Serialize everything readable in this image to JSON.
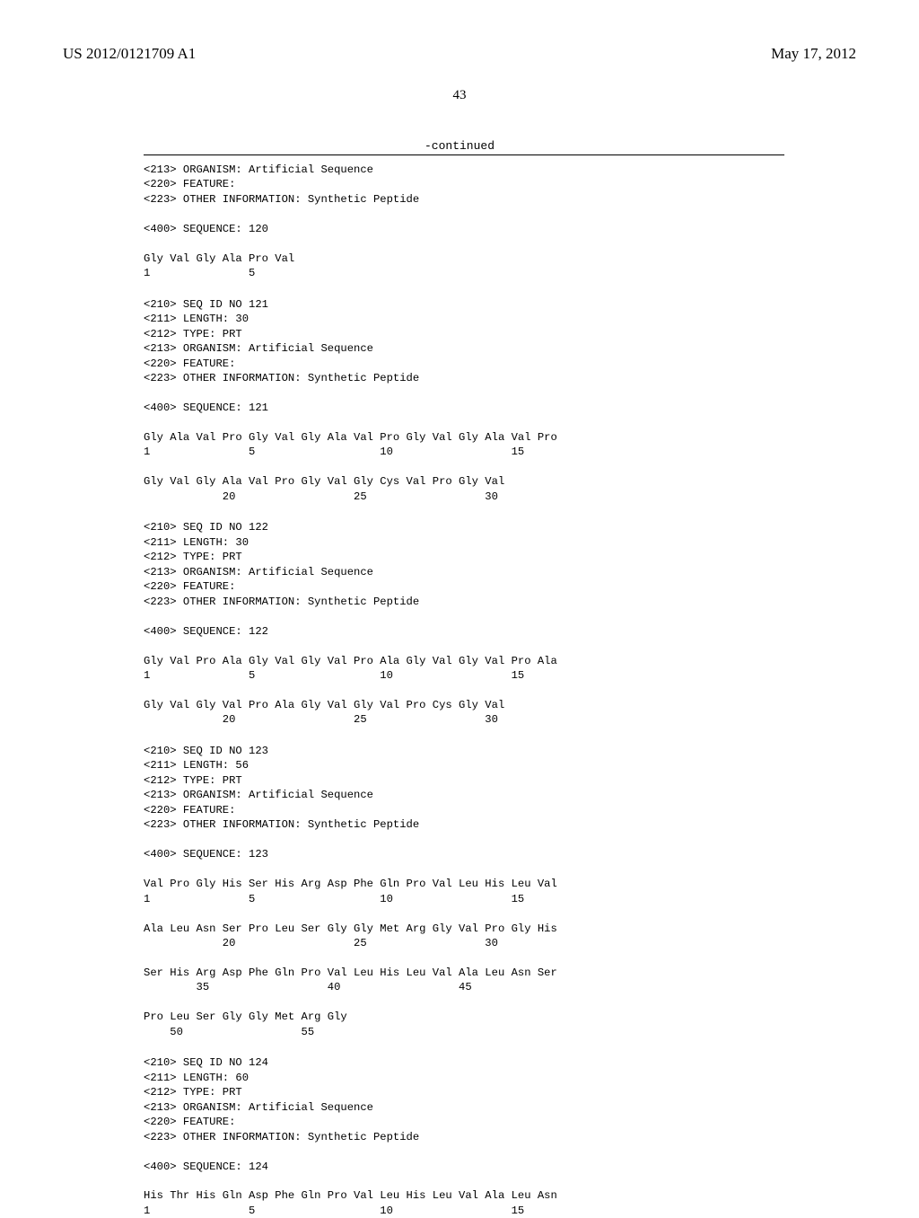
{
  "header": {
    "left": "US 2012/0121709 A1",
    "right": "May 17, 2012"
  },
  "page_number": "43",
  "continued_label": "-continued",
  "blocks": [
    {
      "lines": [
        "<213> ORGANISM: Artificial Sequence",
        "<220> FEATURE:",
        "<223> OTHER INFORMATION: Synthetic Peptide",
        "",
        "<400> SEQUENCE: 120",
        "",
        "Gly Val Gly Ala Pro Val",
        "1               5"
      ]
    },
    {
      "lines": [
        "<210> SEQ ID NO 121",
        "<211> LENGTH: 30",
        "<212> TYPE: PRT",
        "<213> ORGANISM: Artificial Sequence",
        "<220> FEATURE:",
        "<223> OTHER INFORMATION: Synthetic Peptide",
        "",
        "<400> SEQUENCE: 121",
        "",
        "Gly Ala Val Pro Gly Val Gly Ala Val Pro Gly Val Gly Ala Val Pro",
        "1               5                   10                  15",
        "",
        "Gly Val Gly Ala Val Pro Gly Val Gly Cys Val Pro Gly Val",
        "            20                  25                  30"
      ]
    },
    {
      "lines": [
        "<210> SEQ ID NO 122",
        "<211> LENGTH: 30",
        "<212> TYPE: PRT",
        "<213> ORGANISM: Artificial Sequence",
        "<220> FEATURE:",
        "<223> OTHER INFORMATION: Synthetic Peptide",
        "",
        "<400> SEQUENCE: 122",
        "",
        "Gly Val Pro Ala Gly Val Gly Val Pro Ala Gly Val Gly Val Pro Ala",
        "1               5                   10                  15",
        "",
        "Gly Val Gly Val Pro Ala Gly Val Gly Val Pro Cys Gly Val",
        "            20                  25                  30"
      ]
    },
    {
      "lines": [
        "<210> SEQ ID NO 123",
        "<211> LENGTH: 56",
        "<212> TYPE: PRT",
        "<213> ORGANISM: Artificial Sequence",
        "<220> FEATURE:",
        "<223> OTHER INFORMATION: Synthetic Peptide",
        "",
        "<400> SEQUENCE: 123",
        "",
        "Val Pro Gly His Ser His Arg Asp Phe Gln Pro Val Leu His Leu Val",
        "1               5                   10                  15",
        "",
        "Ala Leu Asn Ser Pro Leu Ser Gly Gly Met Arg Gly Val Pro Gly His",
        "            20                  25                  30",
        "",
        "Ser His Arg Asp Phe Gln Pro Val Leu His Leu Val Ala Leu Asn Ser",
        "        35                  40                  45",
        "",
        "Pro Leu Ser Gly Gly Met Arg Gly",
        "    50                  55"
      ]
    },
    {
      "lines": [
        "<210> SEQ ID NO 124",
        "<211> LENGTH: 60",
        "<212> TYPE: PRT",
        "<213> ORGANISM: Artificial Sequence",
        "<220> FEATURE:",
        "<223> OTHER INFORMATION: Synthetic Peptide",
        "",
        "<400> SEQUENCE: 124",
        "",
        "His Thr His Gln Asp Phe Gln Pro Val Leu His Leu Val Ala Leu Asn",
        "1               5                   10                  15"
      ]
    }
  ]
}
